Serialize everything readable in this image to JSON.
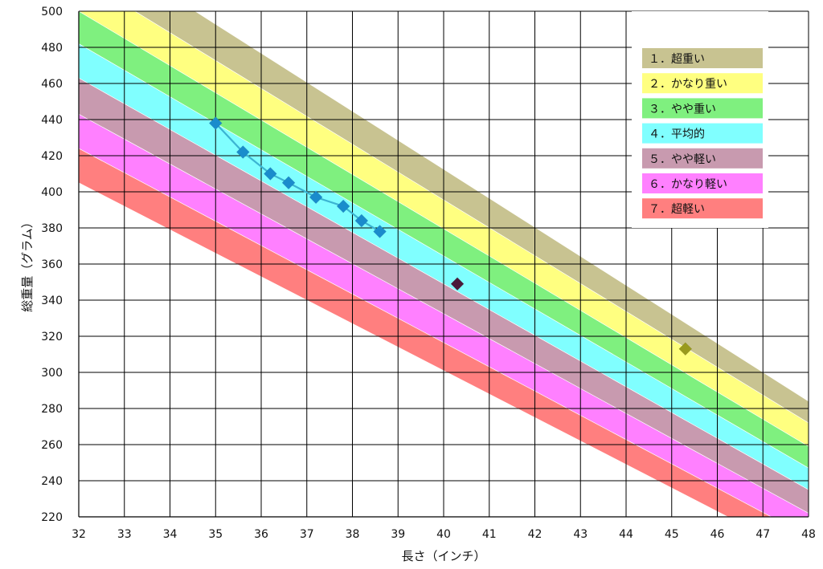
{
  "chart_data": {
    "type": "scatter",
    "xlabel": "長さ（インチ）",
    "ylabel": "総重量（グラム）",
    "xlim": [
      32,
      48
    ],
    "ylim": [
      220,
      500
    ],
    "x_ticks": [
      32,
      33,
      34,
      35,
      36,
      37,
      38,
      39,
      40,
      41,
      42,
      43,
      44,
      45,
      46,
      47,
      48
    ],
    "y_ticks": [
      220,
      240,
      260,
      280,
      300,
      320,
      340,
      360,
      380,
      400,
      420,
      440,
      460,
      480,
      500
    ],
    "grid": true,
    "bands": [
      {
        "label": "１．超重い",
        "color": "#c8c391",
        "upper": [
          541,
          284
        ],
        "lower": [
          519,
          272
        ]
      },
      {
        "label": "２．かなり重い",
        "color": "#ffff80",
        "upper": [
          519,
          272
        ],
        "lower": [
          500,
          259
        ]
      },
      {
        "label": "３．やや重い",
        "color": "#7ff07f",
        "upper": [
          500,
          259
        ],
        "lower": [
          482,
          247
        ]
      },
      {
        "label": "４．平均的",
        "color": "#80ffff",
        "upper": [
          482,
          247
        ],
        "lower": [
          463,
          235
        ]
      },
      {
        "label": "５．やや軽い",
        "color": "#c89aaf",
        "upper": [
          463,
          235
        ],
        "lower": [
          443,
          222
        ]
      },
      {
        "label": "６．かなり軽い",
        "color": "#ff80ff",
        "upper": [
          443,
          222
        ],
        "lower": [
          424,
          209
        ]
      },
      {
        "label": "７．超軽い",
        "color": "#ff7f7f",
        "upper": [
          424,
          209
        ],
        "lower": [
          405,
          197
        ]
      }
    ],
    "band_x_range": [
      32,
      48
    ],
    "legend_position": "top-right",
    "series": [
      {
        "color": "#1a8ccc",
        "line_color": "#3cb4d2",
        "connected": true,
        "points": [
          [
            35.0,
            438
          ],
          [
            35.6,
            422
          ],
          [
            36.2,
            410
          ],
          [
            36.6,
            405
          ],
          [
            37.2,
            397
          ],
          [
            37.8,
            392
          ],
          [
            38.2,
            384
          ],
          [
            38.6,
            378
          ]
        ]
      },
      {
        "color": "#4a1a3a",
        "connected": false,
        "points": [
          [
            40.3,
            349
          ]
        ]
      },
      {
        "color": "#999a1e",
        "connected": false,
        "points": [
          [
            45.3,
            313
          ]
        ]
      }
    ]
  }
}
